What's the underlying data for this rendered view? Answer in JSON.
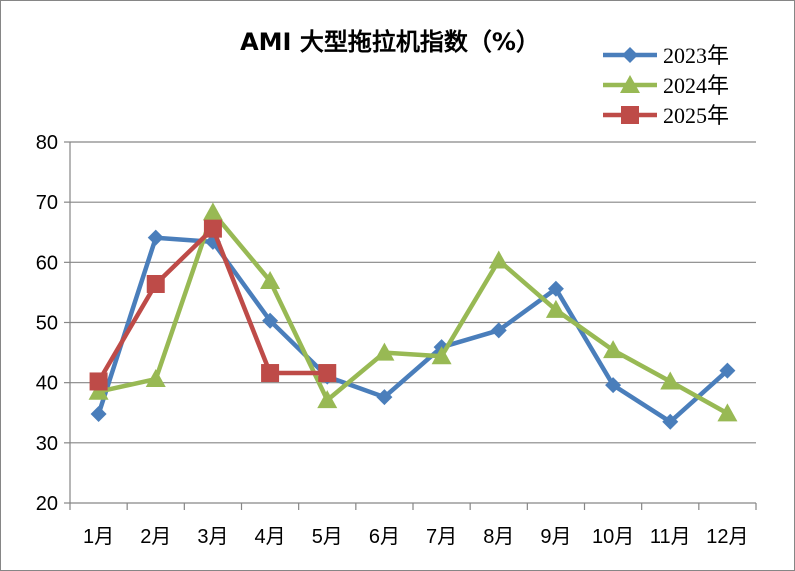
{
  "chart_data": {
    "type": "line",
    "title": "AMI 大型拖拉机指数（%）",
    "categories": [
      "1月",
      "2月",
      "3月",
      "4月",
      "5月",
      "6月",
      "7月",
      "8月",
      "9月",
      "10月",
      "11月",
      "12月"
    ],
    "ylim": [
      20,
      80
    ],
    "yticks": [
      "20",
      "30",
      "40",
      "50",
      "60",
      "70",
      "80"
    ],
    "grid": true,
    "legend_position": "top-right",
    "series": [
      {
        "name": "2023年",
        "color": "#4a7ebb",
        "marker": "diamond",
        "values": [
          34.8,
          64.1,
          63.4,
          50.3,
          41.0,
          37.6,
          45.9,
          48.7,
          55.6,
          39.6,
          33.5,
          42.0
        ]
      },
      {
        "name": "2024年",
        "color": "#98b954",
        "marker": "triangle",
        "values": [
          38.5,
          40.6,
          68.3,
          56.9,
          37.1,
          45.0,
          44.4,
          60.3,
          52.1,
          45.4,
          40.2,
          34.9
        ]
      },
      {
        "name": "2025年",
        "color": "#be4b48",
        "marker": "square",
        "values": [
          40.2,
          56.4,
          65.6,
          41.6,
          41.6,
          null,
          null,
          null,
          null,
          null,
          null,
          null
        ]
      }
    ]
  }
}
